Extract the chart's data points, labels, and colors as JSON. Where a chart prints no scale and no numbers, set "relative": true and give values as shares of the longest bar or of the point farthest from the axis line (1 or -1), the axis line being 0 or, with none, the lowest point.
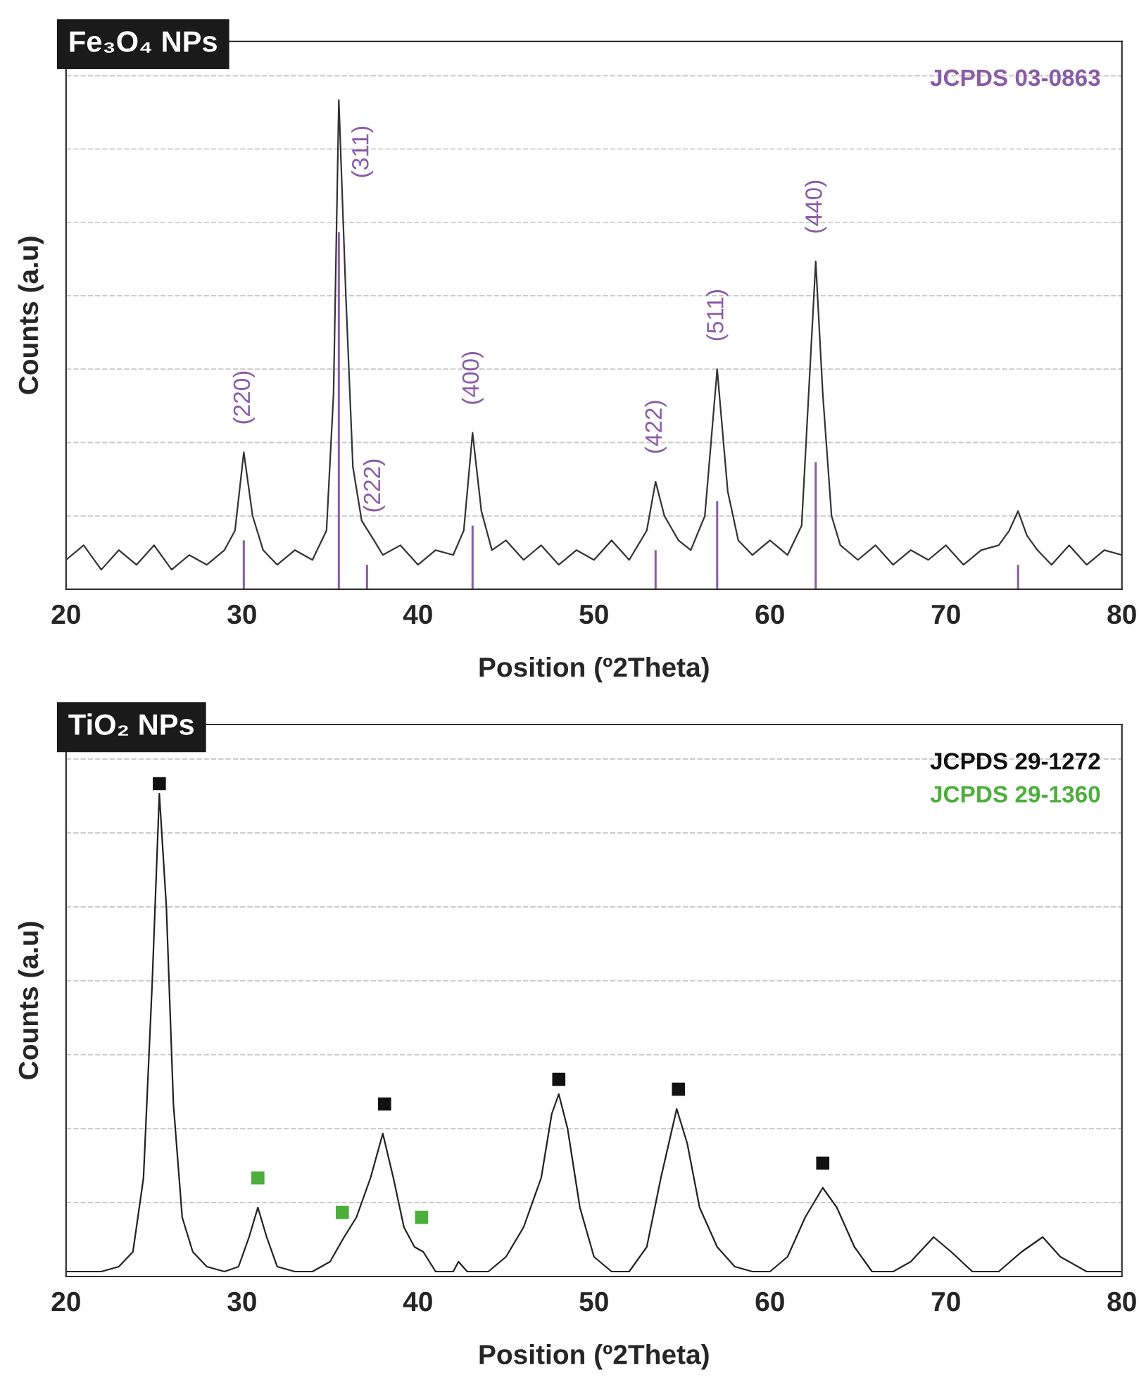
{
  "chart_data": [
    {
      "type": "line",
      "title": "Fe₃O₄ NPs",
      "xlabel": "Position (º2Theta)",
      "ylabel": "Counts (a.u)",
      "xlim": [
        20,
        80
      ],
      "xticks": [
        20,
        30,
        40,
        50,
        60,
        70,
        80
      ],
      "relative": true,
      "tick_labels": "x",
      "grid": "y",
      "series": [
        {
          "color": "#333333",
          "x": [
            20,
            21,
            22,
            23,
            24,
            25,
            26,
            27,
            28,
            29,
            29.6,
            30.1,
            30.6,
            31.2,
            32,
            33,
            34,
            34.8,
            35.2,
            35.5,
            35.9,
            36.3,
            36.8,
            37.5,
            38,
            39,
            40,
            41,
            42,
            42.6,
            43.1,
            43.6,
            44.2,
            45,
            46,
            47,
            48,
            49,
            50,
            51,
            52,
            53,
            53.5,
            54,
            54.8,
            55.5,
            56.3,
            57.0,
            57.6,
            58.2,
            59,
            60,
            61,
            61.8,
            62.2,
            62.6,
            63.0,
            63.5,
            64,
            65,
            66,
            67,
            68,
            69,
            70,
            71,
            72,
            73,
            73.6,
            74.1,
            74.6,
            75.2,
            76,
            77,
            78,
            79,
            80
          ],
          "values": [
            0.06,
            0.09,
            0.04,
            0.08,
            0.05,
            0.09,
            0.04,
            0.07,
            0.05,
            0.08,
            0.12,
            0.28,
            0.15,
            0.08,
            0.05,
            0.08,
            0.06,
            0.12,
            0.4,
            1.0,
            0.6,
            0.25,
            0.14,
            0.1,
            0.07,
            0.09,
            0.05,
            0.08,
            0.07,
            0.12,
            0.32,
            0.16,
            0.08,
            0.1,
            0.06,
            0.09,
            0.05,
            0.08,
            0.06,
            0.1,
            0.06,
            0.12,
            0.22,
            0.15,
            0.1,
            0.08,
            0.15,
            0.45,
            0.2,
            0.1,
            0.07,
            0.1,
            0.07,
            0.13,
            0.4,
            0.67,
            0.4,
            0.15,
            0.09,
            0.06,
            0.09,
            0.05,
            0.08,
            0.06,
            0.09,
            0.05,
            0.08,
            0.09,
            0.12,
            0.16,
            0.11,
            0.08,
            0.05,
            0.09,
            0.05,
            0.08,
            0.07
          ]
        },
        {
          "type": "bar",
          "name": "JCPDS 03-0863",
          "color": "#8a5ca6",
          "x": [
            30.1,
            35.5,
            37.1,
            43.1,
            53.5,
            57.0,
            62.6,
            74.1
          ],
          "values": [
            0.1,
            0.73,
            0.05,
            0.13,
            0.08,
            0.18,
            0.26,
            0.05
          ]
        }
      ],
      "annotations": [
        {
          "text": "(220)",
          "x": 30.1,
          "y": 0.28
        },
        {
          "text": "(311)",
          "x": 35.5,
          "y": 1.0
        },
        {
          "text": "(222)",
          "x": 37.5,
          "y": 0.1
        },
        {
          "text": "(400)",
          "x": 43.1,
          "y": 0.32
        },
        {
          "text": "(422)",
          "x": 53.5,
          "y": 0.22
        },
        {
          "text": "(511)",
          "x": 57.0,
          "y": 0.45
        },
        {
          "text": "(440)",
          "x": 62.6,
          "y": 0.67
        }
      ]
    },
    {
      "type": "line",
      "title": "TiO₂ NPs",
      "xlabel": "Position (º2Theta)",
      "ylabel": "Counts (a.u)",
      "xlim": [
        20,
        80
      ],
      "xticks": [
        20,
        30,
        40,
        50,
        60,
        70,
        80
      ],
      "relative": true,
      "tick_labels": "x",
      "grid": "y",
      "series": [
        {
          "color": "#222222",
          "x": [
            20,
            22,
            23,
            23.8,
            24.4,
            24.9,
            25.3,
            25.7,
            26.1,
            26.6,
            27.2,
            28,
            29,
            29.8,
            30.4,
            30.9,
            31.4,
            32,
            33,
            34,
            35,
            35.8,
            36.5,
            37.3,
            38.0,
            38.6,
            39.2,
            39.8,
            40.3,
            41,
            42,
            42.3,
            42.8,
            44,
            45,
            46,
            47,
            47.6,
            48.0,
            48.5,
            49.2,
            50,
            51,
            52,
            53,
            53.8,
            54.7,
            55.3,
            56,
            57,
            58,
            59,
            60,
            61,
            62,
            63,
            63.8,
            64.8,
            65.8,
            67,
            68,
            69.3,
            70.3,
            71.5,
            73,
            74.3,
            75.5,
            76.5,
            78,
            80
          ],
          "values": [
            0.01,
            0.01,
            0.02,
            0.05,
            0.2,
            0.6,
            0.98,
            0.75,
            0.35,
            0.12,
            0.05,
            0.02,
            0.01,
            0.02,
            0.08,
            0.14,
            0.08,
            0.02,
            0.01,
            0.01,
            0.03,
            0.08,
            0.12,
            0.2,
            0.29,
            0.2,
            0.1,
            0.06,
            0.05,
            0.01,
            0.01,
            0.03,
            0.01,
            0.01,
            0.04,
            0.1,
            0.2,
            0.33,
            0.37,
            0.3,
            0.14,
            0.04,
            0.01,
            0.01,
            0.06,
            0.2,
            0.34,
            0.27,
            0.14,
            0.06,
            0.02,
            0.01,
            0.01,
            0.04,
            0.12,
            0.18,
            0.14,
            0.06,
            0.01,
            0.01,
            0.03,
            0.08,
            0.05,
            0.01,
            0.01,
            0.05,
            0.08,
            0.04,
            0.01,
            0.01
          ]
        },
        {
          "type": "scatter",
          "name": "JCPDS 29-1272",
          "color": "#111111",
          "marker": "square",
          "x": [
            25.3,
            38.1,
            48.0,
            54.8,
            63.0
          ],
          "values": [
            1.0,
            0.35,
            0.4,
            0.38,
            0.23
          ]
        },
        {
          "type": "scatter",
          "name": "JCPDS 29-1360",
          "color": "#4caf3c",
          "marker": "square",
          "x": [
            30.9,
            35.7,
            40.2
          ],
          "values": [
            0.2,
            0.13,
            0.12
          ]
        }
      ]
    }
  ]
}
